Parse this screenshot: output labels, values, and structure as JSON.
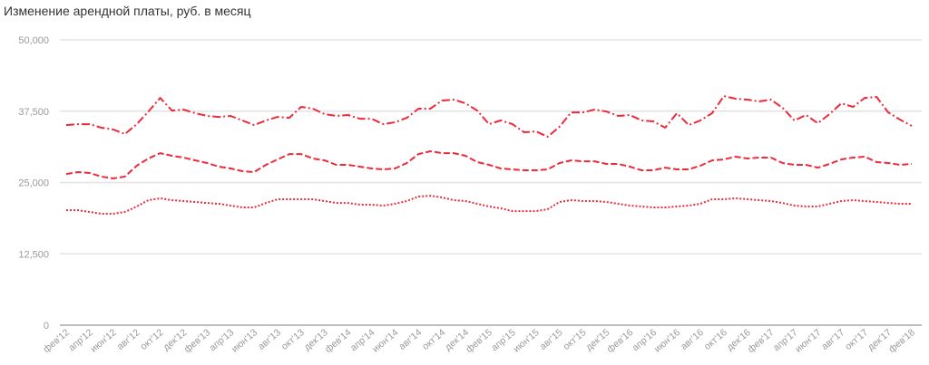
{
  "chart_data": {
    "type": "line",
    "title": "Изменение арендной платы, руб. в месяц",
    "xlabel": "",
    "ylabel": "",
    "ylim": [
      0,
      50000
    ],
    "y_ticks": [
      "0",
      "12,500",
      "25,000",
      "37,500",
      "50,000"
    ],
    "y_tick_values": [
      0,
      12500,
      25000,
      37500,
      50000
    ],
    "grid": true,
    "x_start": "фев'12",
    "x_step": "1 month",
    "x_ticks": [
      "фев'12",
      "апр'12",
      "июн'12",
      "авг'12",
      "окт'12",
      "дек'12",
      "фев'13",
      "апр'13",
      "июн'13",
      "авг'13",
      "окт'13",
      "дек'13",
      "фев'14",
      "апр'14",
      "июн'14",
      "авг'14",
      "окт'14",
      "дек'14",
      "фев'15",
      "апр'15",
      "июн'15",
      "авг'15",
      "окт'15",
      "дек'15",
      "фев'16",
      "апр'16",
      "июн'16",
      "авг'16",
      "окт'16",
      "дек'16",
      "фев'17",
      "апр'17",
      "июн'17",
      "авг'17",
      "окт'17",
      "дек'17",
      "фев'18"
    ],
    "color": "#ee2a3a",
    "series": [
      {
        "name": "top",
        "style": "dashdot",
        "values": [
          35070,
          35230,
          35230,
          34600,
          34280,
          33490,
          35230,
          37450,
          39830,
          37610,
          37770,
          37140,
          36660,
          36500,
          36660,
          35870,
          35070,
          35870,
          36500,
          36340,
          38250,
          37930,
          36980,
          36660,
          36820,
          36180,
          36180,
          35230,
          35550,
          36340,
          37930,
          37930,
          39360,
          39520,
          38880,
          37610,
          35230,
          35870,
          35230,
          33800,
          33960,
          33010,
          34760,
          37290,
          37290,
          37770,
          37450,
          36660,
          36820,
          35870,
          35710,
          34600,
          37140,
          35070,
          35870,
          37140,
          40150,
          39680,
          39520,
          39200,
          39520,
          38090,
          35870,
          36820,
          35390,
          36980,
          38880,
          38250,
          39830,
          40000,
          37290,
          36020,
          34920
        ]
      },
      {
        "name": "middle",
        "style": "dashed",
        "values": [
          26500,
          26820,
          26660,
          26030,
          25710,
          26030,
          27930,
          29200,
          30150,
          29680,
          29360,
          28880,
          28410,
          27770,
          27460,
          26980,
          26820,
          28090,
          29040,
          29990,
          29990,
          29200,
          28880,
          28090,
          28090,
          27770,
          27460,
          27300,
          27460,
          28410,
          29990,
          30470,
          30150,
          30150,
          29680,
          28570,
          28090,
          27460,
          27300,
          27140,
          27140,
          27300,
          28410,
          28880,
          28720,
          28720,
          28250,
          28250,
          27770,
          27140,
          27140,
          27610,
          27300,
          27300,
          27930,
          28880,
          29040,
          29520,
          29200,
          29360,
          29360,
          28410,
          28090,
          28090,
          27610,
          28250,
          29040,
          29360,
          29520,
          28570,
          28410,
          28090,
          28250
        ]
      },
      {
        "name": "bottom",
        "style": "dotted",
        "values": [
          20150,
          20150,
          19840,
          19520,
          19520,
          19840,
          20790,
          21900,
          22220,
          21900,
          21740,
          21580,
          21420,
          21270,
          20950,
          20630,
          20630,
          21420,
          22060,
          22060,
          22060,
          22060,
          21740,
          21420,
          21420,
          21110,
          21110,
          20950,
          21270,
          21740,
          22540,
          22690,
          22380,
          21900,
          21740,
          21270,
          20790,
          20470,
          19990,
          19990,
          19990,
          20310,
          21580,
          21900,
          21740,
          21740,
          21580,
          21270,
          20950,
          20790,
          20630,
          20630,
          20790,
          20950,
          21270,
          22060,
          22060,
          22220,
          22060,
          21900,
          21740,
          21420,
          20950,
          20790,
          20790,
          21270,
          21740,
          21900,
          21740,
          21580,
          21420,
          21270,
          21270
        ]
      }
    ]
  }
}
